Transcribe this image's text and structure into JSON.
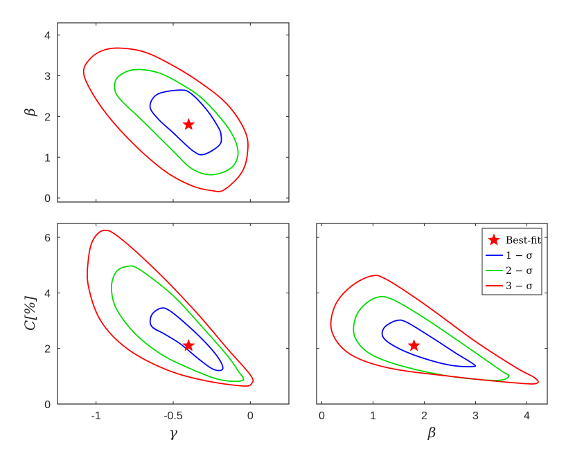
{
  "chart_data": [
    {
      "type": "contour",
      "panel": "gamma-beta",
      "xlabel": "",
      "ylabel": "β",
      "xlim": [
        -1.25,
        0.25
      ],
      "ylim": [
        -0.1,
        4.3
      ],
      "xticks": [
        {
          "v": -1,
          "label": "-1"
        },
        {
          "v": -0.5,
          "label": "-0.5"
        },
        {
          "v": 0,
          "label": "0"
        }
      ],
      "yticks": [
        {
          "v": 0,
          "label": "0"
        },
        {
          "v": 1,
          "label": "1"
        },
        {
          "v": 2,
          "label": "2"
        },
        {
          "v": 3,
          "label": "3"
        },
        {
          "v": 4,
          "label": "4"
        }
      ],
      "show_x_ticklabels": false,
      "best_fit": {
        "x": -0.4,
        "y": 1.8
      },
      "series": [
        {
          "color": "#0000ff",
          "points": [
            [
              -0.45,
              2.65
            ],
            [
              -0.38,
              2.55
            ],
            [
              -0.28,
              2.15
            ],
            [
              -0.21,
              1.75
            ],
            [
              -0.19,
              1.55
            ],
            [
              -0.2,
              1.3
            ],
            [
              -0.3,
              1.07
            ],
            [
              -0.37,
              1.15
            ],
            [
              -0.5,
              1.6
            ],
            [
              -0.6,
              1.95
            ],
            [
              -0.65,
              2.25
            ],
            [
              -0.6,
              2.55
            ]
          ]
        },
        {
          "color": "#00dd00",
          "points": [
            [
              -0.75,
              3.15
            ],
            [
              -0.6,
              3.08
            ],
            [
              -0.45,
              2.8
            ],
            [
              -0.3,
              2.4
            ],
            [
              -0.14,
              1.7
            ],
            [
              -0.08,
              1.15
            ],
            [
              -0.12,
              0.75
            ],
            [
              -0.25,
              0.57
            ],
            [
              -0.38,
              0.72
            ],
            [
              -0.5,
              1.15
            ],
            [
              -0.7,
              1.9
            ],
            [
              -0.85,
              2.45
            ],
            [
              -0.88,
              2.75
            ],
            [
              -0.85,
              3.0
            ]
          ]
        },
        {
          "color": "#ff0000",
          "points": [
            [
              -0.85,
              3.68
            ],
            [
              -0.7,
              3.6
            ],
            [
              -0.55,
              3.35
            ],
            [
              -0.35,
              2.9
            ],
            [
              -0.15,
              2.3
            ],
            [
              -0.03,
              1.6
            ],
            [
              -0.02,
              1.05
            ],
            [
              -0.06,
              0.6
            ],
            [
              -0.17,
              0.2
            ],
            [
              -0.25,
              0.18
            ],
            [
              -0.38,
              0.3
            ],
            [
              -0.55,
              0.65
            ],
            [
              -0.75,
              1.3
            ],
            [
              -0.93,
              2.05
            ],
            [
              -1.05,
              2.75
            ],
            [
              -1.08,
              3.15
            ],
            [
              -1.03,
              3.45
            ],
            [
              -0.95,
              3.63
            ]
          ]
        }
      ]
    },
    {
      "type": "contour",
      "panel": "gamma-C",
      "xlabel": "γ",
      "ylabel": "C[%]",
      "xlim": [
        -1.25,
        0.25
      ],
      "ylim": [
        0,
        6.5
      ],
      "xticks": [
        {
          "v": -1,
          "label": "-1"
        },
        {
          "v": -0.5,
          "label": "-0.5"
        },
        {
          "v": 0,
          "label": "0"
        }
      ],
      "yticks": [
        {
          "v": 0,
          "label": "0"
        },
        {
          "v": 2,
          "label": "2"
        },
        {
          "v": 4,
          "label": "4"
        },
        {
          "v": 6,
          "label": "6"
        }
      ],
      "show_x_ticklabels": true,
      "best_fit": {
        "x": -0.4,
        "y": 2.1
      },
      "series": [
        {
          "color": "#0000ff",
          "points": [
            [
              -0.58,
              3.45
            ],
            [
              -0.52,
              3.35
            ],
            [
              -0.4,
              2.8
            ],
            [
              -0.28,
              2.15
            ],
            [
              -0.2,
              1.6
            ],
            [
              -0.18,
              1.25
            ],
            [
              -0.24,
              1.25
            ],
            [
              -0.33,
              1.6
            ],
            [
              -0.45,
              2.15
            ],
            [
              -0.55,
              2.5
            ],
            [
              -0.64,
              2.8
            ],
            [
              -0.64,
              3.2
            ]
          ]
        },
        {
          "color": "#00dd00",
          "points": [
            [
              -0.8,
              4.95
            ],
            [
              -0.72,
              4.85
            ],
            [
              -0.5,
              3.9
            ],
            [
              -0.3,
              2.7
            ],
            [
              -0.15,
              1.75
            ],
            [
              -0.08,
              1.2
            ],
            [
              -0.05,
              0.85
            ],
            [
              -0.2,
              0.88
            ],
            [
              -0.4,
              1.3
            ],
            [
              -0.58,
              1.8
            ],
            [
              -0.75,
              2.55
            ],
            [
              -0.87,
              3.45
            ],
            [
              -0.9,
              4.2
            ],
            [
              -0.87,
              4.75
            ]
          ]
        },
        {
          "color": "#ff0000",
          "points": [
            [
              -0.95,
              6.25
            ],
            [
              -0.85,
              6.0
            ],
            [
              -0.6,
              4.75
            ],
            [
              -0.35,
              3.3
            ],
            [
              -0.15,
              2.0
            ],
            [
              0.0,
              1.05
            ],
            [
              0.01,
              0.75
            ],
            [
              -0.05,
              0.65
            ],
            [
              -0.3,
              0.85
            ],
            [
              -0.55,
              1.25
            ],
            [
              -0.8,
              2.0
            ],
            [
              -0.97,
              3.0
            ],
            [
              -1.05,
              4.25
            ],
            [
              -1.05,
              5.2
            ],
            [
              -1.02,
              5.9
            ]
          ]
        }
      ]
    },
    {
      "type": "contour",
      "panel": "beta-C",
      "xlabel": "β",
      "ylabel": "",
      "xlim": [
        -0.1,
        4.4
      ],
      "ylim": [
        0,
        6.5
      ],
      "xticks": [
        {
          "v": 0,
          "label": "0"
        },
        {
          "v": 1,
          "label": "1"
        },
        {
          "v": 2,
          "label": "2"
        },
        {
          "v": 3,
          "label": "3"
        },
        {
          "v": 4,
          "label": "4"
        }
      ],
      "yticks": [
        {
          "v": 0,
          "label": ""
        },
        {
          "v": 2,
          "label": ""
        },
        {
          "v": 4,
          "label": ""
        },
        {
          "v": 6,
          "label": ""
        }
      ],
      "show_x_ticklabels": true,
      "best_fit": {
        "x": 1.8,
        "y": 2.1
      },
      "series": [
        {
          "color": "#0000ff",
          "points": [
            [
              1.45,
              3.0
            ],
            [
              1.65,
              2.95
            ],
            [
              2.1,
              2.45
            ],
            [
              2.6,
              1.85
            ],
            [
              2.95,
              1.45
            ],
            [
              2.95,
              1.35
            ],
            [
              2.5,
              1.4
            ],
            [
              1.9,
              1.7
            ],
            [
              1.45,
              2.05
            ],
            [
              1.2,
              2.4
            ],
            [
              1.22,
              2.75
            ]
          ]
        },
        {
          "color": "#00dd00",
          "points": [
            [
              1.1,
              3.85
            ],
            [
              1.4,
              3.75
            ],
            [
              2.0,
              3.1
            ],
            [
              2.8,
              2.1
            ],
            [
              3.5,
              1.2
            ],
            [
              3.65,
              1.0
            ],
            [
              3.4,
              0.85
            ],
            [
              2.5,
              1.0
            ],
            [
              1.6,
              1.35
            ],
            [
              0.95,
              1.8
            ],
            [
              0.65,
              2.4
            ],
            [
              0.65,
              3.05
            ],
            [
              0.82,
              3.55
            ]
          ]
        },
        {
          "color": "#ff0000",
          "points": [
            [
              0.95,
              4.6
            ],
            [
              1.25,
              4.5
            ],
            [
              2.0,
              3.6
            ],
            [
              3.0,
              2.25
            ],
            [
              3.8,
              1.3
            ],
            [
              4.15,
              0.95
            ],
            [
              4.2,
              0.75
            ],
            [
              3.85,
              0.75
            ],
            [
              2.5,
              1.0
            ],
            [
              1.3,
              1.3
            ],
            [
              0.55,
              1.8
            ],
            [
              0.2,
              2.6
            ],
            [
              0.25,
              3.5
            ],
            [
              0.55,
              4.2
            ]
          ]
        }
      ]
    }
  ],
  "legend": {
    "placement": "top-right of lower-right panel",
    "entries": [
      {
        "label": "Best-fit",
        "color": "#ff0000",
        "marker": "star"
      },
      {
        "label": "1 − σ",
        "color": "#0000ff",
        "marker": "line"
      },
      {
        "label": "2 − σ",
        "color": "#00dd00",
        "marker": "line"
      },
      {
        "label": "3 − σ",
        "color": "#ff0000",
        "marker": "line"
      }
    ]
  }
}
